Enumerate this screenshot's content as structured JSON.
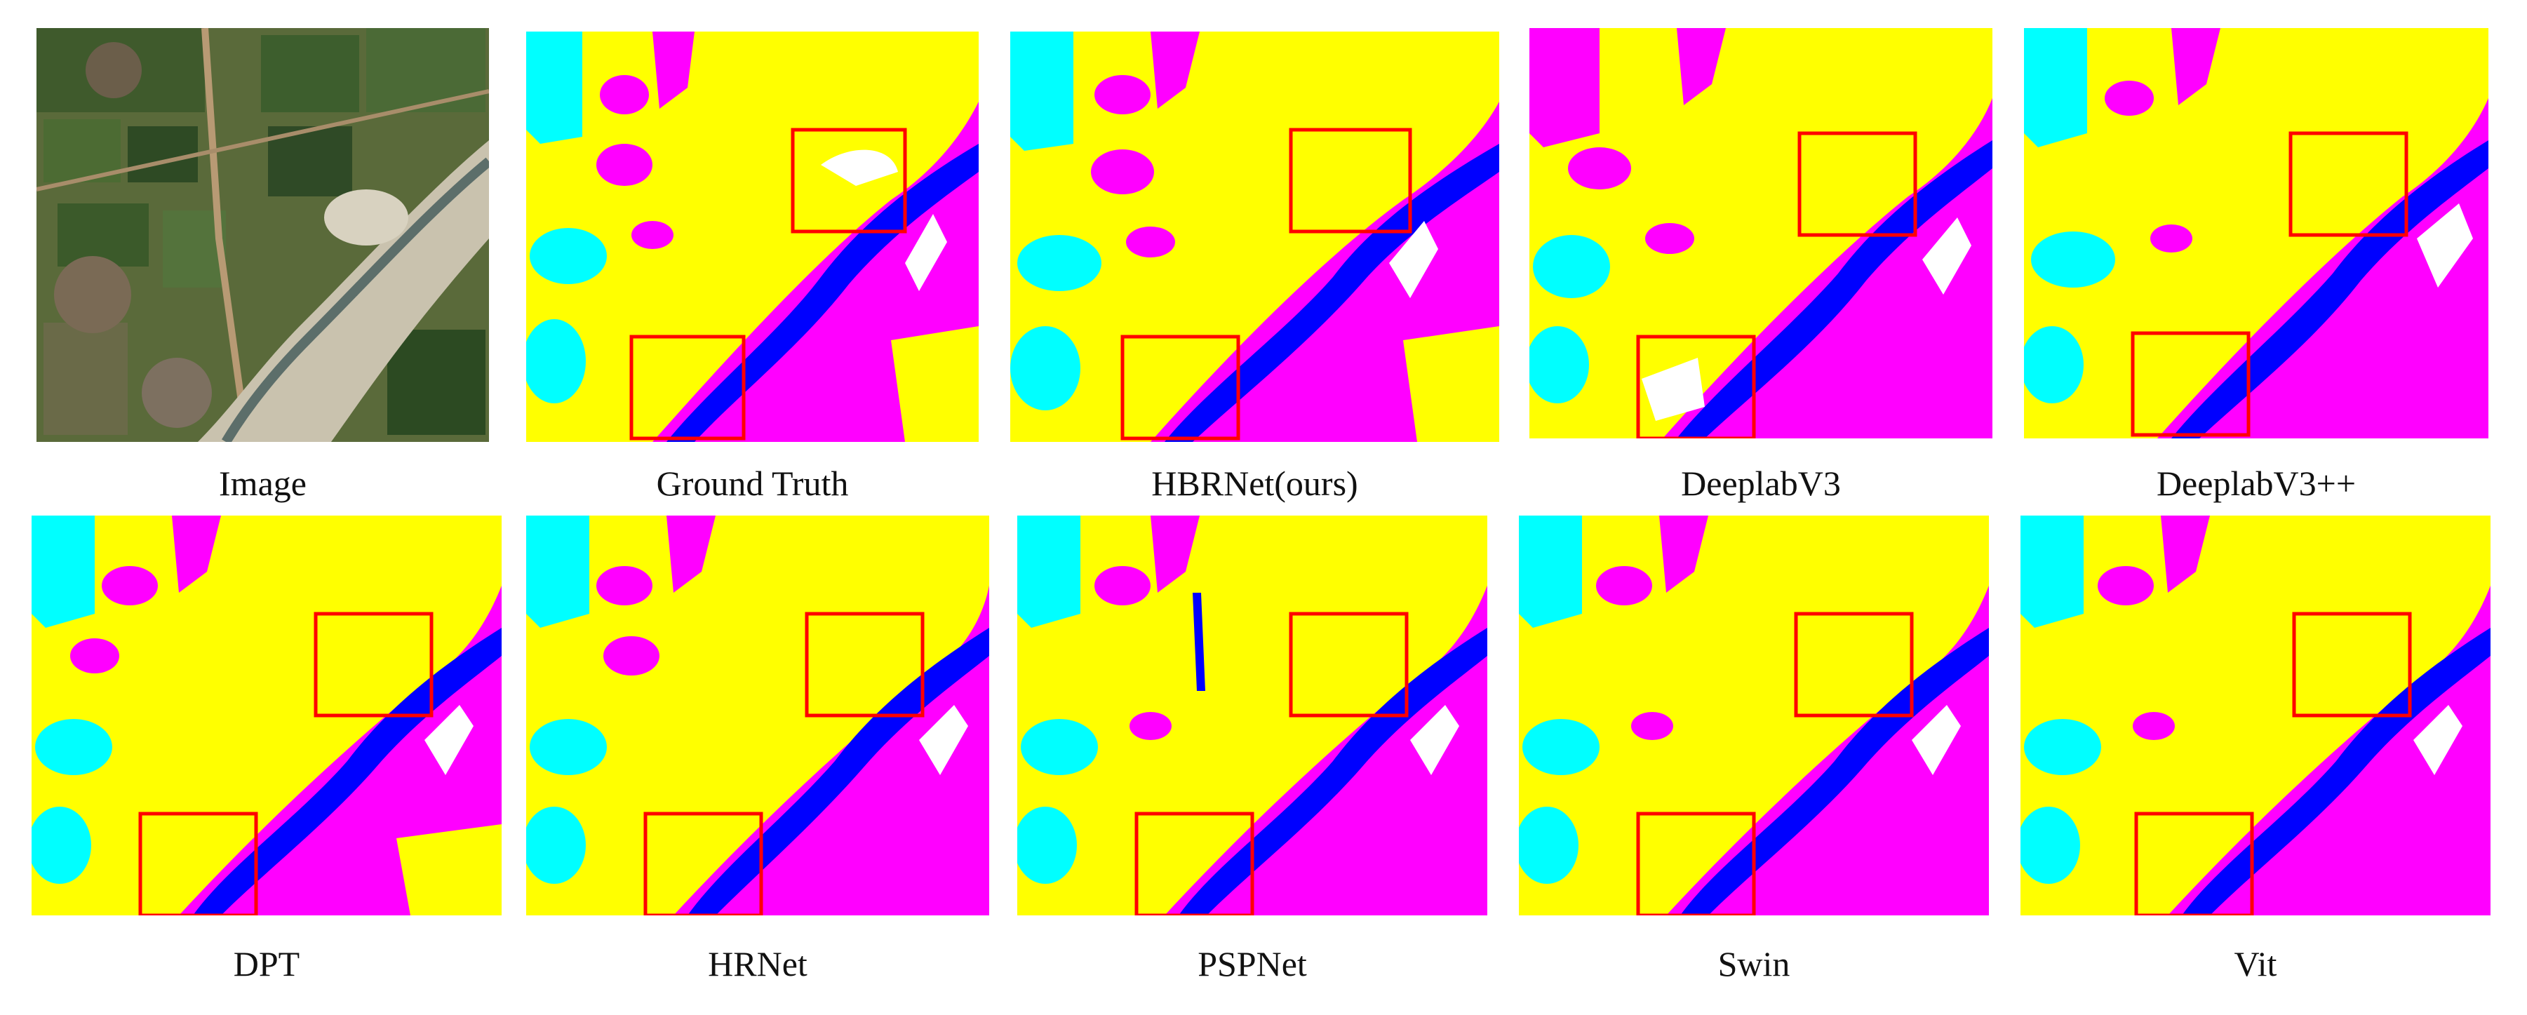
{
  "figure": {
    "captions": {
      "image": "Image",
      "ground_truth": "Ground Truth",
      "hbrnet": "HBRNet(ours)",
      "deeplabv3": "DeeplabV3",
      "deeplabv3pp": "DeeplabV3++",
      "dpt": "DPT",
      "hrnet": "HRNet",
      "pspnet": "PSPNet",
      "swin": "Swin",
      "vit": "Vit"
    },
    "class_colors": {
      "background": "#ffff00",
      "class_magenta": "#ff00ff",
      "class_cyan": "#00ffff",
      "river": "#0000ff",
      "class_white": "#ffffff"
    },
    "highlight_box_color": "#ff0000"
  }
}
